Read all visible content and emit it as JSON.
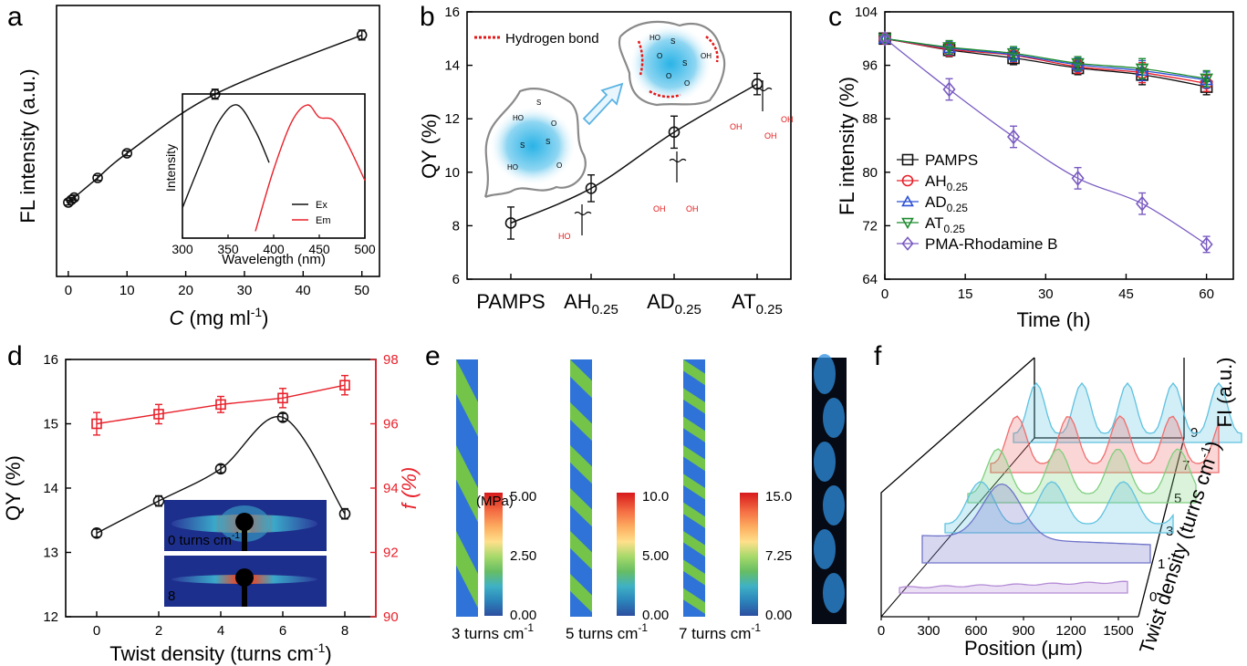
{
  "colors": {
    "black": "#111111",
    "red": "#e8202a",
    "blue": "#2a4fd6",
    "green": "#1b8a2d",
    "purple": "#7a5bc2",
    "hbond": "#e21a1a",
    "fiber_blue": "#2f73d8",
    "fiber_green": "#7ccd3a"
  },
  "panel_labels": {
    "a": "a",
    "b": "b",
    "c": "c",
    "d": "d",
    "e": "e",
    "f": "f"
  },
  "chart_data": [
    {
      "id": "a",
      "type": "line",
      "xlabel_italic": "C",
      "xlabel_rest": " (mg ml",
      "xlabel_sup": "-1",
      "xlabel_close": ")",
      "ylabel": "FL intensity (a.u.)",
      "xlim": [
        -2,
        53
      ],
      "ylim": [
        0,
        1.1
      ],
      "xticks": [
        0,
        10,
        20,
        30,
        40,
        50
      ],
      "series": [
        {
          "x": [
            0,
            0.5,
            1,
            5,
            10,
            25,
            50
          ],
          "y": [
            0.3,
            0.31,
            0.32,
            0.4,
            0.5,
            0.74,
            0.98
          ],
          "err": [
            0.01,
            0.01,
            0.01,
            0.01,
            0.01,
            0.02,
            0.02
          ]
        }
      ],
      "inset": {
        "type": "line",
        "xlabel": "Wavelength (nm)",
        "ylabel": "Intensity",
        "xlim": [
          300,
          500
        ],
        "xticks": [
          300,
          350,
          400,
          450,
          500
        ],
        "series": [
          {
            "name": "Ex",
            "x": [
              300,
              320,
              340,
              360,
              380,
              395
            ],
            "y": [
              0.22,
              0.55,
              0.85,
              0.97,
              0.78,
              0.55
            ]
          },
          {
            "name": "Em",
            "x": [
              380,
              400,
              420,
              437,
              450,
              465,
              480,
              500
            ],
            "y": [
              0.05,
              0.5,
              0.85,
              0.97,
              0.88,
              0.86,
              0.7,
              0.42
            ]
          }
        ]
      }
    },
    {
      "id": "b",
      "type": "line",
      "ylabel": "QY (%)",
      "ylim": [
        6,
        16
      ],
      "yticks": [
        6,
        8,
        10,
        12,
        14,
        16
      ],
      "categories": [
        "PAMPS",
        "AH",
        "AD",
        "AT"
      ],
      "category_subscript": [
        "",
        "0.25",
        "0.25",
        "0.25"
      ],
      "values": [
        8.1,
        9.4,
        11.5,
        13.3
      ],
      "errors": [
        0.6,
        0.5,
        0.6,
        0.4
      ],
      "legend": "Hydrogen bond",
      "chem_labels": {
        "oh": "OH",
        "ho": "HO",
        "so": "S",
        "o": "O",
        "o_minus": "O⁻"
      }
    },
    {
      "id": "c",
      "type": "line",
      "xlabel": "Time (h)",
      "ylabel": "FL intensity (%)",
      "xlim": [
        0,
        65
      ],
      "ylim": [
        64,
        104
      ],
      "xticks": [
        0,
        15,
        30,
        45,
        60
      ],
      "yticks": [
        64,
        72,
        80,
        88,
        96,
        104
      ],
      "x": [
        0,
        12,
        24,
        36,
        48,
        60
      ],
      "series": [
        {
          "name": "PAMPS",
          "sub": "",
          "marker": "square",
          "color": "#111111",
          "values": [
            100,
            98.3,
            97.1,
            95.6,
            94.6,
            92.8
          ],
          "err": [
            0.4,
            1.0,
            1.0,
            1.0,
            1.5,
            1.2
          ]
        },
        {
          "name": "AH",
          "sub": "0.25",
          "marker": "circle",
          "color": "#e8202a",
          "values": [
            100,
            98.4,
            97.5,
            95.8,
            94.9,
            93.3
          ],
          "err": [
            0.4,
            1.0,
            1.0,
            1.0,
            1.5,
            1.2
          ]
        },
        {
          "name": "AD",
          "sub": "0.25",
          "marker": "triangle",
          "color": "#2a4fd6",
          "values": [
            100,
            98.6,
            97.6,
            96.1,
            95.2,
            93.8
          ],
          "err": [
            0.4,
            1.0,
            1.0,
            1.0,
            1.5,
            1.2
          ]
        },
        {
          "name": "AT",
          "sub": "0.25",
          "marker": "triangle-down",
          "color": "#1b8a2d",
          "values": [
            100,
            98.7,
            97.8,
            96.3,
            95.5,
            94.0
          ],
          "err": [
            0.4,
            1.0,
            1.0,
            1.0,
            1.5,
            1.2
          ]
        },
        {
          "name": "PMA-Rhodamine B",
          "sub": "",
          "marker": "diamond",
          "color": "#7a5bc2",
          "values": [
            100,
            92.4,
            85.3,
            79.1,
            75.3,
            69.2
          ],
          "err": [
            0.4,
            1.6,
            1.6,
            1.6,
            1.6,
            1.2
          ]
        }
      ]
    },
    {
      "id": "d",
      "type": "line",
      "xlabel": "Twist density (turns cm",
      "xlabel_sup": "-1",
      "xlabel_close": ")",
      "ylabel_left": "QY (%)",
      "ylabel_right": "f (%)",
      "xlim": [
        -1,
        9
      ],
      "xticks": [
        0,
        2,
        4,
        6,
        8
      ],
      "ylim_left": [
        12,
        16
      ],
      "yticks_left": [
        12,
        13,
        14,
        15,
        16
      ],
      "ylim_right": [
        90,
        98
      ],
      "yticks_right": [
        90,
        92,
        94,
        96,
        98
      ],
      "x": [
        0,
        2,
        4,
        6,
        8
      ],
      "qy": [
        13.3,
        13.8,
        14.3,
        15.1,
        13.6
      ],
      "qy_err": [
        0.06,
        0.08,
        0.06,
        0.06,
        0.08
      ],
      "f": [
        96.0,
        96.3,
        96.6,
        96.8,
        97.2
      ],
      "f_err": [
        0.35,
        0.3,
        0.25,
        0.3,
        0.3
      ],
      "inset_labels": [
        "0 turns cm",
        "8"
      ],
      "inset_sup": "-1"
    },
    {
      "id": "e",
      "type": "other",
      "unit": "(MPa)",
      "fibers": [
        {
          "caption": "3 turns cm",
          "sup": "-1",
          "scale": [
            "5.00",
            "2.50",
            "0.00"
          ]
        },
        {
          "caption": "5 turns cm",
          "sup": "-1",
          "scale": [
            "10.0",
            "5.00",
            "0.00"
          ]
        },
        {
          "caption": "7 turns cm",
          "sup": "-1",
          "scale": [
            "15.0",
            "7.25",
            "0.00"
          ]
        }
      ]
    },
    {
      "id": "f",
      "type": "line",
      "xlabel": "Position (μm)",
      "ylabel": "FI (a.u.)",
      "zlabel": "Twist density (turns cm",
      "zlabel_sup": "-1",
      "zlabel_close": ")",
      "xticks": [
        0,
        300,
        600,
        900,
        1200,
        1500
      ],
      "zticks": [
        0,
        1,
        3,
        5,
        7,
        9
      ],
      "traces": [
        {
          "twist": 0,
          "color": "#b48cd6"
        },
        {
          "twist": 1,
          "color": "#6f73c9"
        },
        {
          "twist": 3,
          "color": "#5ec2e0"
        },
        {
          "twist": 5,
          "color": "#7fd07f"
        },
        {
          "twist": 7,
          "color": "#ef6d6d"
        },
        {
          "twist": 9,
          "color": "#5ec2e0"
        }
      ]
    }
  ]
}
